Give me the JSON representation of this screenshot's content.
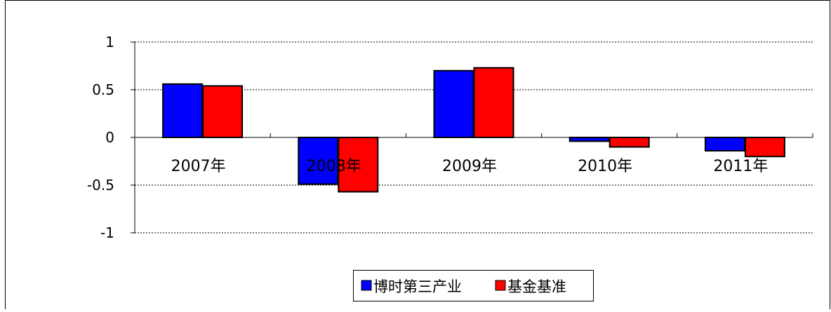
{
  "chart_data": {
    "type": "bar",
    "title": "",
    "xlabel": "",
    "ylabel": "",
    "categories": [
      "2007年",
      "2008年",
      "2009年",
      "2010年",
      "2011年"
    ],
    "series": [
      {
        "name": "博时第三产业",
        "color": "#0000ff",
        "values": [
          0.56,
          -0.49,
          0.7,
          -0.04,
          -0.14
        ]
      },
      {
        "name": "基金基准",
        "color": "#ff0000",
        "values": [
          0.54,
          -0.57,
          0.73,
          -0.1,
          -0.2
        ]
      }
    ],
    "ylim": [
      -1,
      1
    ],
    "yticks": [
      1,
      0.5,
      0,
      -0.5,
      -1
    ],
    "ytick_labels": [
      "1",
      "0.5",
      "0",
      "-0.5",
      "-1"
    ],
    "grid": true,
    "legend_position": "bottom-center"
  }
}
